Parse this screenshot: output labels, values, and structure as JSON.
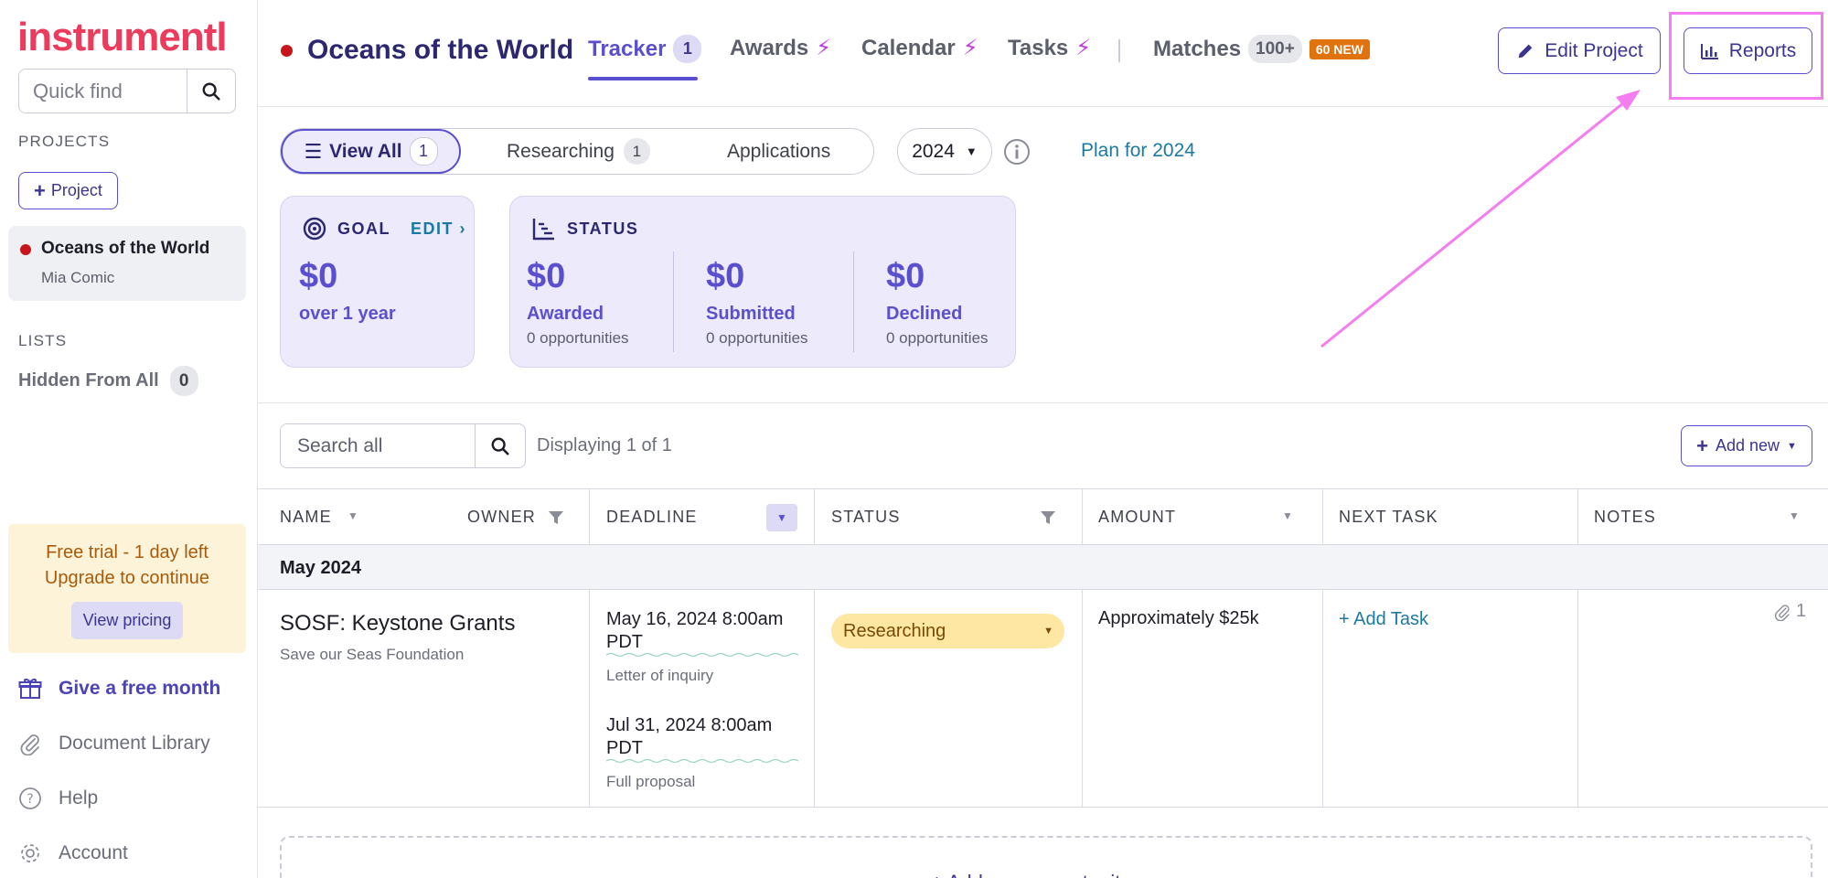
{
  "brand": {
    "logo_text": "instrumentl",
    "logo_color": "#ec3b5d",
    "accent_color": "#5a4fcf"
  },
  "sidebar": {
    "quick_find_placeholder": "Quick find",
    "projects_heading": "PROJECTS",
    "add_project_label": "Project",
    "current_project": {
      "name": "Oceans of the World",
      "owner": "Mia Comic",
      "dot_color": "#c6161b"
    },
    "lists_heading": "LISTS",
    "hidden_list": {
      "label": "Hidden From All",
      "count": "0"
    },
    "trial": {
      "line1": "Free trial - 1 day left",
      "line2": "Upgrade to continue",
      "button": "View pricing"
    },
    "links": [
      {
        "label": "Give a free month",
        "icon": "gift-icon"
      },
      {
        "label": "Document Library",
        "icon": "paperclip-icon"
      },
      {
        "label": "Help",
        "icon": "help-icon"
      },
      {
        "label": "Account",
        "icon": "gear-icon"
      }
    ]
  },
  "header": {
    "project_title": "Oceans of the World",
    "tabs": [
      {
        "label": "Tracker",
        "badge": "1",
        "active": true
      },
      {
        "label": "Awards",
        "icon": "bolt-icon"
      },
      {
        "label": "Calendar",
        "icon": "bolt-icon"
      },
      {
        "label": "Tasks",
        "icon": "bolt-icon"
      },
      {
        "label": "Matches",
        "badge": "100+",
        "new_badge": "60 NEW"
      }
    ],
    "edit_project_label": "Edit Project",
    "reports_label": "Reports",
    "highlight_color": "#f57df2"
  },
  "filters": {
    "view_all": {
      "label": "View All",
      "count": "1"
    },
    "researching": {
      "label": "Researching",
      "count": "1"
    },
    "applications": {
      "label": "Applications"
    },
    "year": "2024",
    "plan_link": "Plan for 2024"
  },
  "goal_card": {
    "heading": "GOAL",
    "edit": "EDIT",
    "amount": "$0",
    "period": "over 1 year"
  },
  "status_card": {
    "heading": "STATUS",
    "items": [
      {
        "amount": "$0",
        "label": "Awarded",
        "note": "0 opportunities"
      },
      {
        "amount": "$0",
        "label": "Submitted",
        "note": "0 opportunities"
      },
      {
        "amount": "$0",
        "label": "Declined",
        "note": "0 opportunities"
      }
    ]
  },
  "table": {
    "search_placeholder": "Search all",
    "displaying": "Displaying 1 of 1",
    "add_new": "Add new",
    "columns": [
      "NAME",
      "OWNER",
      "DEADLINE",
      "STATUS",
      "AMOUNT",
      "NEXT TASK",
      "NOTES"
    ],
    "group_label": "May 2024",
    "rows": [
      {
        "name": "SOSF: Keystone Grants",
        "org": "Save our Seas Foundation",
        "deadlines": [
          {
            "date": "May 16, 2024 8:00am PDT",
            "type": "Letter of inquiry"
          },
          {
            "date": "Jul 31, 2024 8:00am PDT",
            "type": "Full proposal"
          }
        ],
        "status": "Researching",
        "amount": "Approximately $25k",
        "next_task": "+ Add Task",
        "attachments": "1"
      }
    ],
    "add_opportunity": "+ Add new opportunity"
  }
}
